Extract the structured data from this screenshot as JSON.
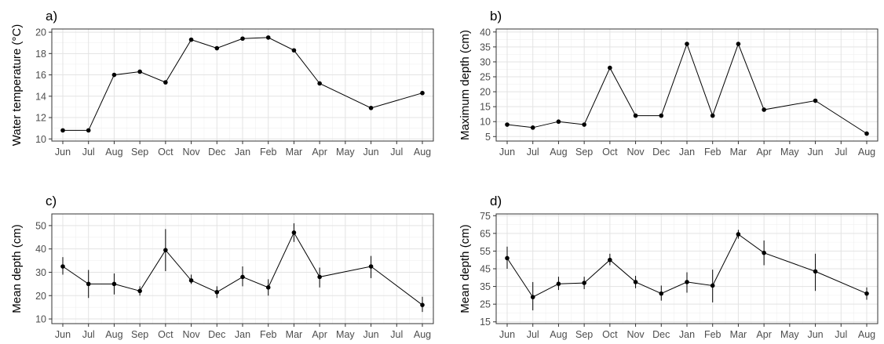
{
  "chart_data": [
    {
      "type": "line",
      "panel_label": "a)",
      "title": "",
      "xlabel": "",
      "ylabel": "Water temperature (°C)",
      "ylim": [
        9.8,
        20.3
      ],
      "yticks": [
        10,
        12,
        14,
        16,
        18,
        20
      ],
      "grid": true,
      "x_tick_labels": [
        "Jun",
        "Jul",
        "Aug",
        "Sep",
        "Oct",
        "Nov",
        "Dec",
        "Jan",
        "Feb",
        "Mar",
        "Apr",
        "May",
        "Jun",
        "Jul",
        "Aug"
      ],
      "x": [
        "Jun",
        "Jul",
        "Aug",
        "Sep",
        "Oct",
        "Nov",
        "Dec",
        "Jan",
        "Feb",
        "Mar",
        "Apr",
        "Jun",
        "Aug"
      ],
      "x_index": [
        0,
        1,
        2,
        3,
        4,
        5,
        6,
        7,
        8,
        9,
        10,
        12,
        14
      ],
      "values": [
        10.8,
        10.8,
        16.0,
        16.3,
        15.3,
        19.3,
        18.5,
        19.4,
        19.5,
        18.3,
        15.2,
        12.9,
        14.3
      ]
    },
    {
      "type": "line",
      "panel_label": "b)",
      "title": "",
      "xlabel": "",
      "ylabel": "Maximum depth (cm)",
      "ylim": [
        3.5,
        41
      ],
      "yticks": [
        5,
        10,
        15,
        20,
        25,
        30,
        35,
        40
      ],
      "grid": true,
      "x_tick_labels": [
        "Jun",
        "Jul",
        "Aug",
        "Sep",
        "Oct",
        "Nov",
        "Dec",
        "Jan",
        "Feb",
        "Mar",
        "Apr",
        "May",
        "Jun",
        "Jul",
        "Aug"
      ],
      "x": [
        "Jun",
        "Jul",
        "Aug",
        "Sep",
        "Oct",
        "Nov",
        "Dec",
        "Jan",
        "Feb",
        "Mar",
        "Apr",
        "Jun",
        "Aug"
      ],
      "x_index": [
        0,
        1,
        2,
        3,
        4,
        5,
        6,
        7,
        8,
        9,
        10,
        12,
        14
      ],
      "values": [
        9,
        8,
        10,
        9,
        28,
        12,
        12,
        36,
        12,
        36,
        14,
        17,
        6
      ]
    },
    {
      "type": "line",
      "panel_label": "c)",
      "title": "",
      "xlabel": "",
      "ylabel": "Mean depth (cm)",
      "ylim": [
        8,
        55
      ],
      "yticks": [
        10,
        20,
        30,
        40,
        50
      ],
      "grid": true,
      "x_tick_labels": [
        "Jun",
        "Jul",
        "Aug",
        "Sep",
        "Oct",
        "Nov",
        "Dec",
        "Jan",
        "Feb",
        "Mar",
        "Apr",
        "May",
        "Jun",
        "Jul",
        "Aug"
      ],
      "x": [
        "Jun",
        "Jul",
        "Aug",
        "Sep",
        "Oct",
        "Nov",
        "Dec",
        "Jan",
        "Feb",
        "Mar",
        "Apr",
        "Jun",
        "Aug"
      ],
      "x_index": [
        0,
        1,
        2,
        3,
        4,
        5,
        6,
        7,
        8,
        9,
        10,
        12,
        14
      ],
      "values": [
        32.5,
        25,
        25,
        22,
        39.5,
        26.5,
        21.5,
        28,
        23.5,
        47,
        28,
        32.5,
        16
      ],
      "error_low": [
        29,
        19,
        20.5,
        20,
        30.5,
        25,
        19,
        24,
        20,
        43,
        23.5,
        27.5,
        13
      ],
      "error_high": [
        36.5,
        31,
        29.5,
        24,
        48.5,
        29,
        24,
        32.5,
        27,
        51,
        32,
        37,
        19.5
      ]
    },
    {
      "type": "line",
      "panel_label": "d)",
      "title": "",
      "xlabel": "",
      "ylabel": "Mean depth (cm)",
      "ylim": [
        14,
        76
      ],
      "yticks": [
        15,
        25,
        35,
        45,
        55,
        65,
        75
      ],
      "grid": true,
      "x_tick_labels": [
        "Jun",
        "Jul",
        "Aug",
        "Sep",
        "Oct",
        "Nov",
        "Dec",
        "Jan",
        "Feb",
        "Mar",
        "Apr",
        "May",
        "Jun",
        "Jul",
        "Aug"
      ],
      "x": [
        "Jun",
        "Jul",
        "Aug",
        "Sep",
        "Oct",
        "Nov",
        "Dec",
        "Jan",
        "Feb",
        "Mar",
        "Apr",
        "Jun",
        "Aug"
      ],
      "x_index": [
        0,
        1,
        2,
        3,
        4,
        5,
        6,
        7,
        8,
        9,
        10,
        12,
        14
      ],
      "values": [
        51,
        29,
        36.5,
        37,
        50,
        37.5,
        31,
        37.5,
        35.5,
        64.5,
        54,
        43.5,
        31
      ],
      "error_low": [
        45,
        21.5,
        33,
        33.5,
        47,
        34,
        27,
        31.5,
        26,
        62,
        47,
        32.5,
        27.5
      ],
      "error_high": [
        57.5,
        37.5,
        40.5,
        40.5,
        53.5,
        41,
        35.5,
        43,
        44.5,
        67,
        61,
        53.5,
        34.5
      ]
    }
  ]
}
